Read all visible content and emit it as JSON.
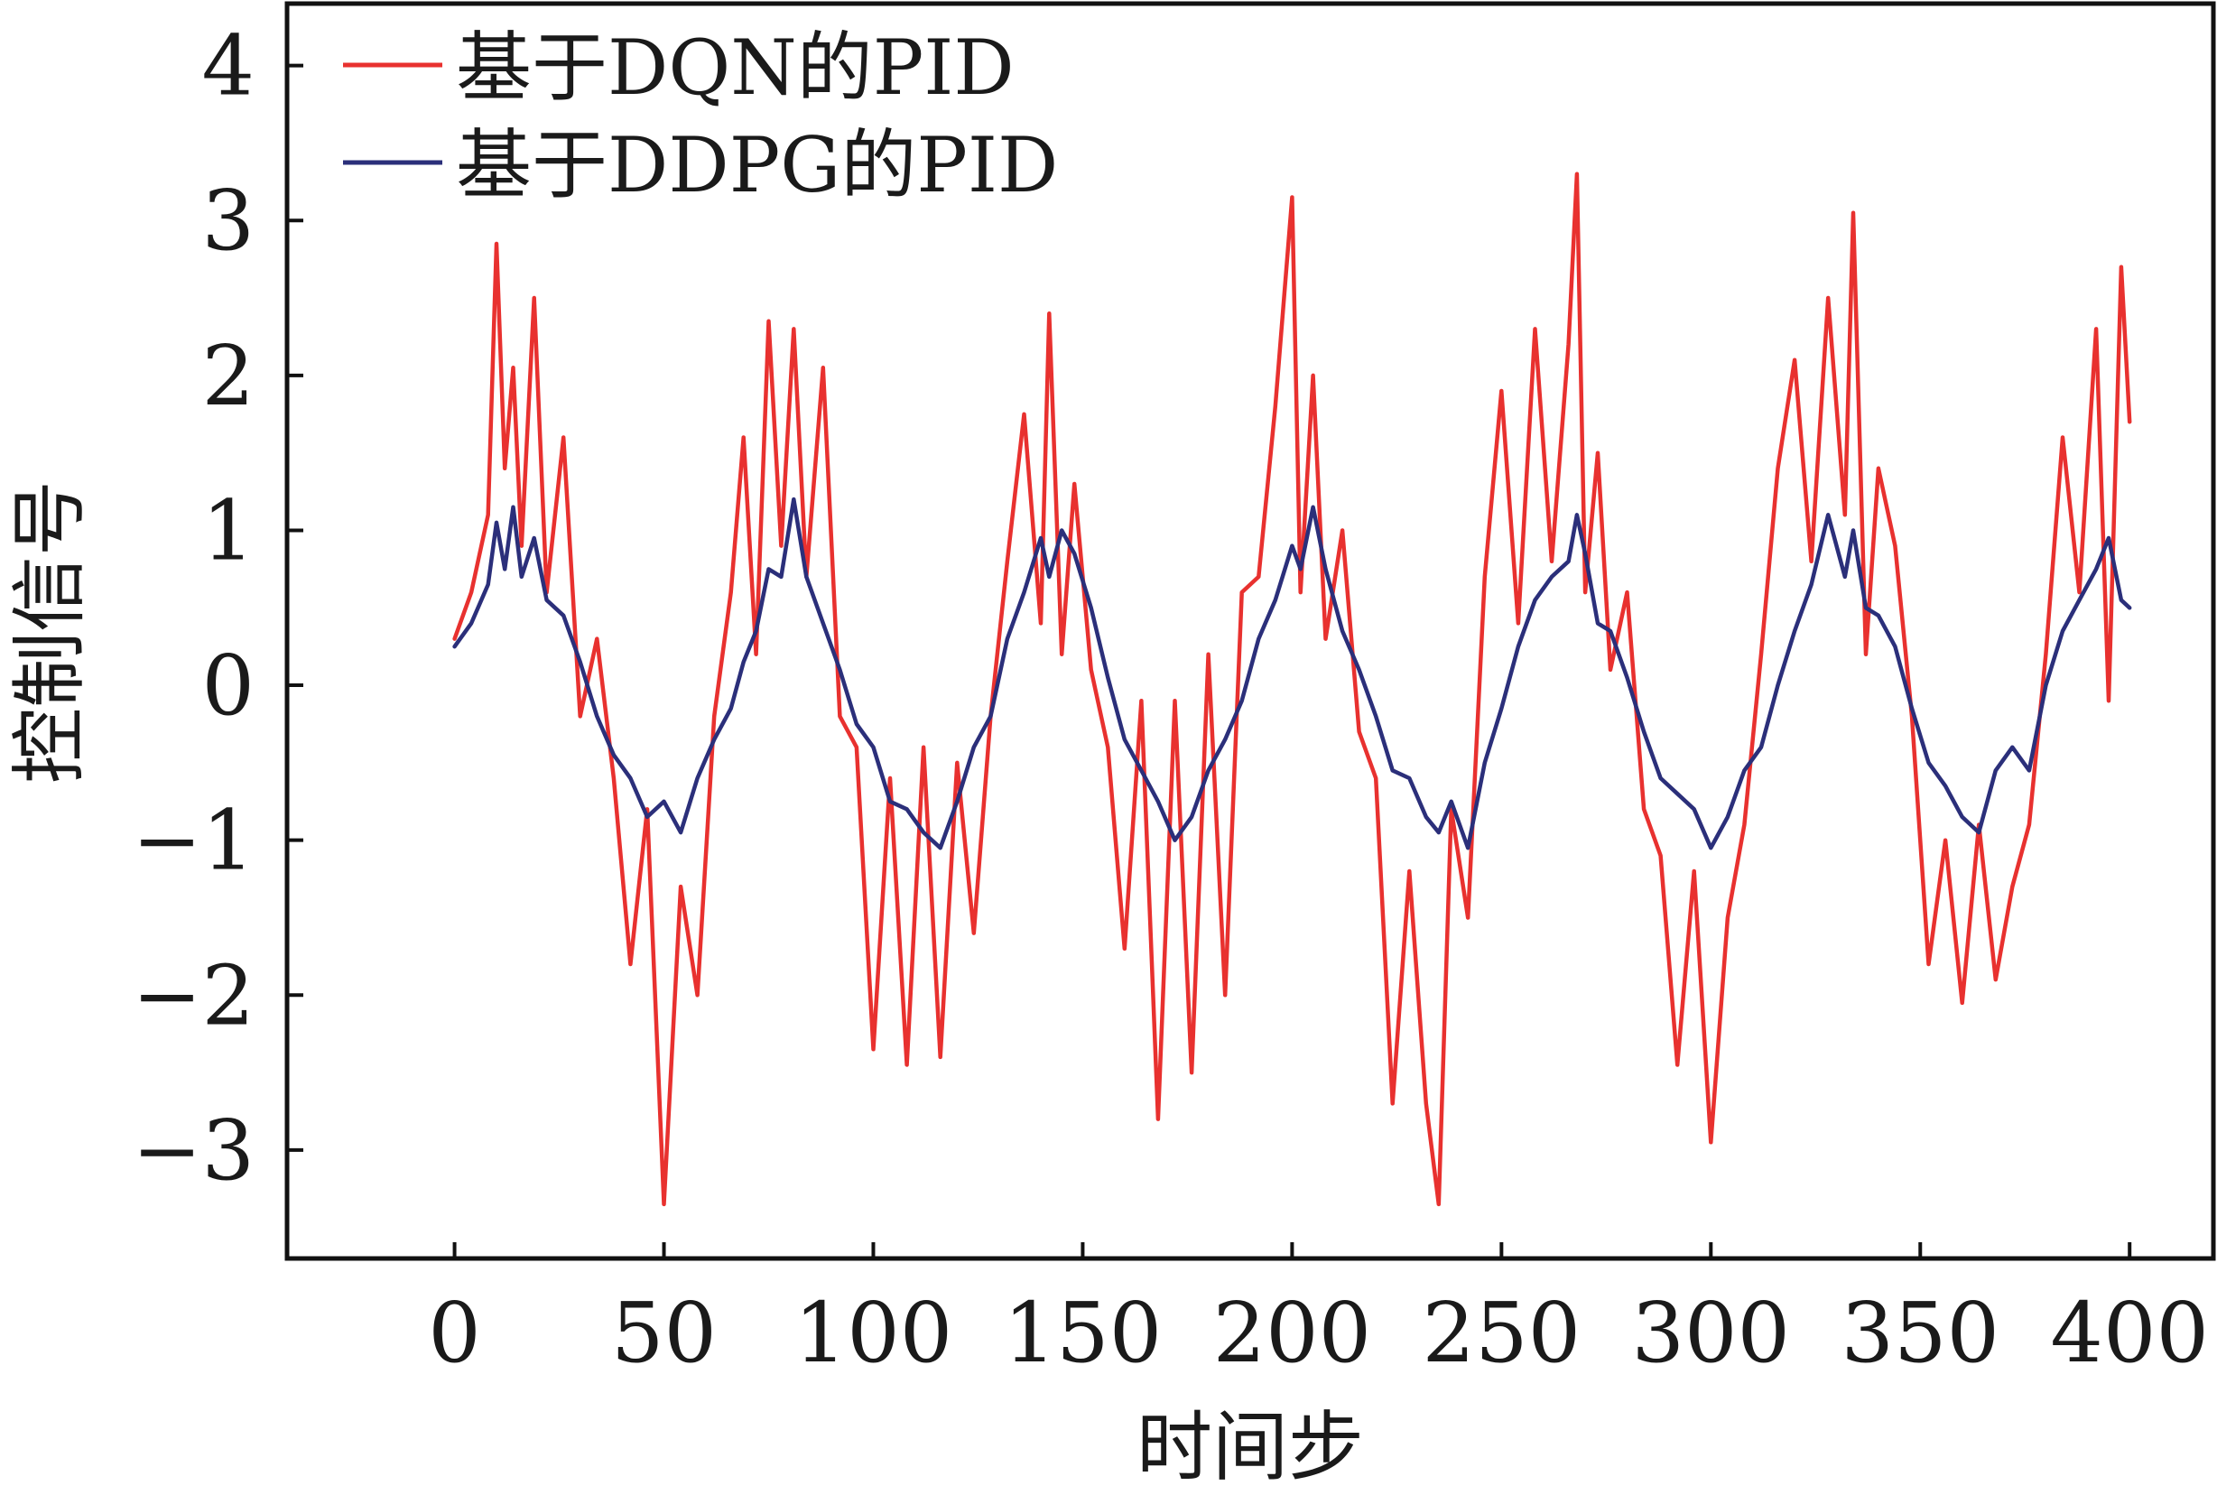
{
  "chart_data": {
    "type": "line",
    "xlabel": "时间步",
    "ylabel": "控制信号",
    "xlim": [
      -40,
      420
    ],
    "ylim": [
      -3.7,
      4.4
    ],
    "xticks": [
      0,
      50,
      100,
      150,
      200,
      250,
      300,
      350,
      400
    ],
    "yticks": [
      -3,
      -2,
      -1,
      0,
      1,
      2,
      3,
      4
    ],
    "ytick_labels": [
      "−3",
      "−2",
      "−1",
      "0",
      "1",
      "2",
      "3",
      "4"
    ],
    "grid": false,
    "legend_position": "top-left",
    "x": [
      0,
      4,
      8,
      10,
      12,
      14,
      16,
      19,
      22,
      26,
      30,
      34,
      38,
      42,
      46,
      50,
      54,
      58,
      62,
      66,
      69,
      72,
      75,
      78,
      81,
      84,
      88,
      92,
      96,
      100,
      104,
      108,
      112,
      116,
      120,
      124,
      128,
      132,
      136,
      140,
      142,
      145,
      148,
      152,
      156,
      160,
      164,
      168,
      172,
      176,
      180,
      184,
      188,
      192,
      196,
      200,
      202,
      205,
      208,
      212,
      216,
      220,
      224,
      228,
      232,
      235,
      238,
      242,
      246,
      250,
      254,
      258,
      262,
      266,
      268,
      270,
      273,
      276,
      280,
      284,
      288,
      292,
      296,
      300,
      304,
      308,
      312,
      316,
      320,
      324,
      328,
      332,
      334,
      337,
      340,
      344,
      348,
      352,
      356,
      360,
      364,
      368,
      372,
      376,
      380,
      384,
      388,
      392,
      395,
      398,
      400
    ],
    "series": [
      {
        "name": "基于DQN的PID",
        "color": "#e8312f",
        "values": [
          0.3,
          0.6,
          1.1,
          2.85,
          1.4,
          2.05,
          0.9,
          2.5,
          0.6,
          1.6,
          -0.2,
          0.3,
          -0.6,
          -1.8,
          -0.8,
          -3.35,
          -1.3,
          -2.0,
          -0.2,
          0.6,
          1.6,
          0.2,
          2.35,
          0.9,
          2.3,
          0.7,
          2.05,
          -0.2,
          -0.4,
          -2.35,
          -0.6,
          -2.45,
          -0.4,
          -2.4,
          -0.5,
          -1.6,
          -0.2,
          0.8,
          1.75,
          0.4,
          2.4,
          0.2,
          1.3,
          0.1,
          -0.4,
          -1.7,
          -0.1,
          -2.8,
          -0.1,
          -2.5,
          0.2,
          -2.0,
          0.6,
          0.7,
          1.8,
          3.15,
          0.6,
          2.0,
          0.3,
          1.0,
          -0.3,
          -0.6,
          -2.7,
          -1.2,
          -2.7,
          -3.35,
          -0.8,
          -1.5,
          0.7,
          1.9,
          0.4,
          2.3,
          0.8,
          2.2,
          3.3,
          0.6,
          1.5,
          0.1,
          0.6,
          -0.8,
          -1.1,
          -2.45,
          -1.2,
          -2.95,
          -1.5,
          -0.9,
          0.2,
          1.4,
          2.1,
          0.8,
          2.5,
          1.1,
          3.05,
          0.2,
          1.4,
          0.9,
          -0.2,
          -1.8,
          -1.0,
          -2.05,
          -0.9,
          -1.9,
          -1.3,
          -0.9,
          0.2,
          1.6,
          0.6,
          2.3,
          -0.1,
          2.7,
          1.7
        ]
      },
      {
        "name": "基于DDPG的PID",
        "color": "#2b2f7a",
        "values": [
          0.25,
          0.4,
          0.65,
          1.05,
          0.75,
          1.15,
          0.7,
          0.95,
          0.55,
          0.45,
          0.15,
          -0.2,
          -0.45,
          -0.6,
          -0.85,
          -0.75,
          -0.95,
          -0.6,
          -0.35,
          -0.15,
          0.15,
          0.35,
          0.75,
          0.7,
          1.2,
          0.7,
          0.4,
          0.1,
          -0.25,
          -0.4,
          -0.75,
          -0.8,
          -0.95,
          -1.05,
          -0.75,
          -0.4,
          -0.2,
          0.3,
          0.6,
          0.95,
          0.7,
          1.0,
          0.85,
          0.5,
          0.05,
          -0.35,
          -0.55,
          -0.75,
          -1.0,
          -0.85,
          -0.55,
          -0.35,
          -0.1,
          0.3,
          0.55,
          0.9,
          0.75,
          1.15,
          0.75,
          0.35,
          0.1,
          -0.2,
          -0.55,
          -0.6,
          -0.85,
          -0.95,
          -0.75,
          -1.05,
          -0.5,
          -0.15,
          0.25,
          0.55,
          0.7,
          0.8,
          1.1,
          0.85,
          0.4,
          0.35,
          0.05,
          -0.3,
          -0.6,
          -0.7,
          -0.8,
          -1.05,
          -0.85,
          -0.55,
          -0.4,
          0.0,
          0.35,
          0.65,
          1.1,
          0.7,
          1.0,
          0.5,
          0.45,
          0.25,
          -0.15,
          -0.5,
          -0.65,
          -0.85,
          -0.95,
          -0.55,
          -0.4,
          -0.55,
          0.0,
          0.35,
          0.55,
          0.75,
          0.95,
          0.55,
          0.5
        ]
      }
    ]
  }
}
